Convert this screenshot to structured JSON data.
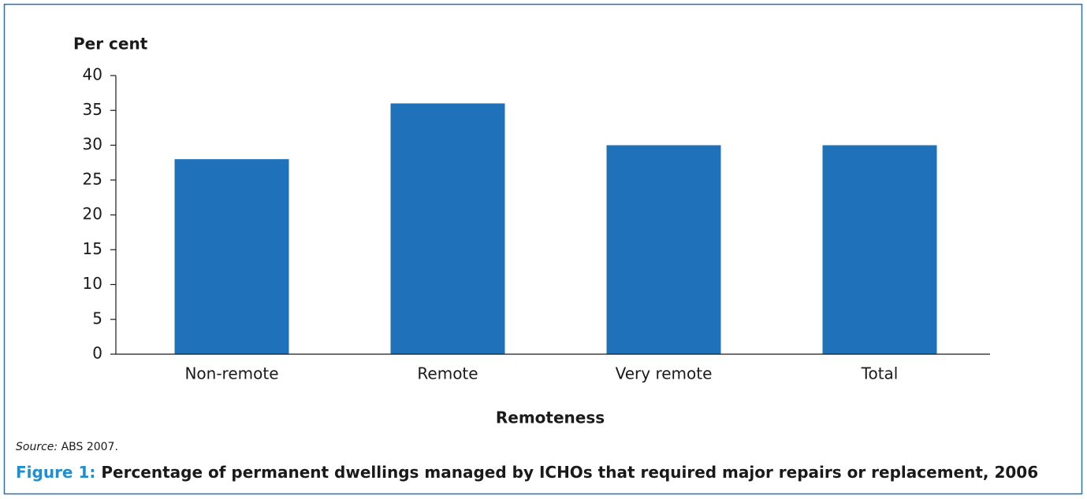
{
  "chart_data": {
    "type": "bar",
    "y_label": "Per cent",
    "x_label": "Remoteness",
    "categories": [
      "Non-remote",
      "Remote",
      "Very remote",
      "Total"
    ],
    "values": [
      28,
      36,
      30,
      30
    ],
    "color": "#1f72ba",
    "ylim": [
      0,
      40
    ],
    "yticks": [
      0,
      5,
      10,
      15,
      20,
      25,
      30,
      35,
      40
    ],
    "grid": false,
    "source": {
      "label": "Source:",
      "text": "ABS 2007."
    },
    "caption": {
      "label": "Figure 1:",
      "text": "Percentage of permanent dwellings managed by ICHOs that required major repairs or replacement, 2006"
    }
  }
}
